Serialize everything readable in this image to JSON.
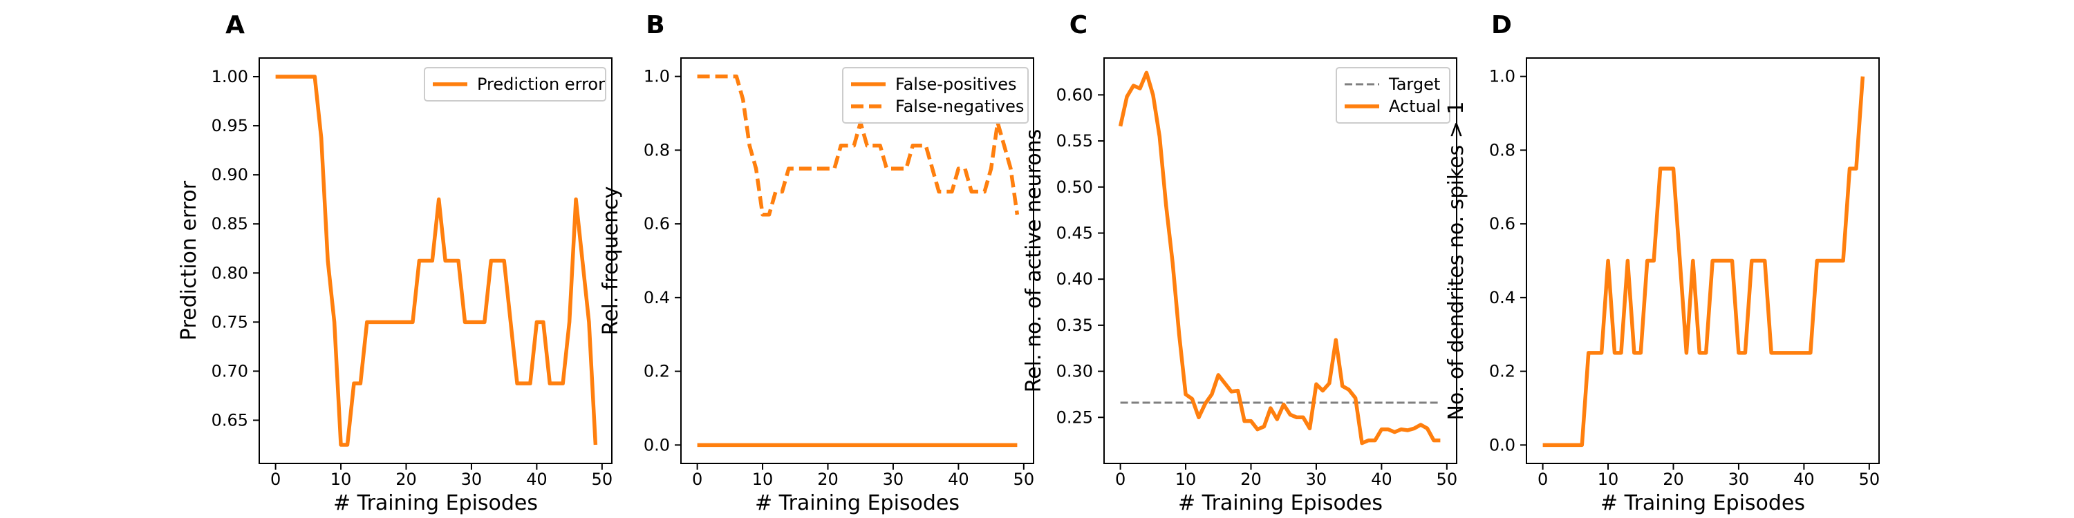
{
  "panels": [
    {
      "letter": "A"
    },
    {
      "letter": "B"
    },
    {
      "letter": "C"
    },
    {
      "letter": "D"
    }
  ],
  "colors": {
    "orange": "#ff7f0e",
    "gray": "#7f7f7f",
    "axis": "#000000"
  },
  "chart_data": [
    {
      "type": "line",
      "title": "",
      "xlabel": "# Training Episodes",
      "ylabel": "Prediction error",
      "xlim": [
        -2.5,
        51.5
      ],
      "ylim": [
        0.606,
        1.019
      ],
      "xticks": [
        0,
        10,
        20,
        30,
        40,
        50
      ],
      "yticks": [
        0.65,
        0.7,
        0.75,
        0.8,
        0.85,
        0.9,
        0.95,
        1.0
      ],
      "ytick_labels": [
        "0.65",
        "0.70",
        "0.75",
        "0.80",
        "0.85",
        "0.90",
        "0.95",
        "1.00"
      ],
      "legend": "top-right",
      "x": [
        0,
        1,
        2,
        3,
        4,
        5,
        6,
        7,
        8,
        9,
        10,
        11,
        12,
        13,
        14,
        15,
        16,
        17,
        18,
        19,
        20,
        21,
        22,
        23,
        24,
        25,
        26,
        27,
        28,
        29,
        30,
        31,
        32,
        33,
        34,
        35,
        36,
        37,
        38,
        39,
        40,
        41,
        42,
        43,
        44,
        45,
        46,
        47,
        48,
        49
      ],
      "series": [
        {
          "name": "Prediction error",
          "color": "#ff7f0e",
          "style": "solid",
          "values": [
            1.0,
            1.0,
            1.0,
            1.0,
            1.0,
            1.0,
            1.0,
            0.9375,
            0.8125,
            0.75,
            0.625,
            0.625,
            0.6875,
            0.6875,
            0.75,
            0.75,
            0.75,
            0.75,
            0.75,
            0.75,
            0.75,
            0.75,
            0.8125,
            0.8125,
            0.8125,
            0.875,
            0.8125,
            0.8125,
            0.8125,
            0.75,
            0.75,
            0.75,
            0.75,
            0.8125,
            0.8125,
            0.8125,
            0.75,
            0.6875,
            0.6875,
            0.6875,
            0.75,
            0.75,
            0.6875,
            0.6875,
            0.6875,
            0.75,
            0.875,
            0.8125,
            0.75,
            0.625
          ]
        }
      ]
    },
    {
      "type": "line",
      "title": "",
      "xlabel": "# Training Episodes",
      "ylabel": "Rel. frequency",
      "xlim": [
        -2.5,
        51.5
      ],
      "ylim": [
        -0.05,
        1.05
      ],
      "xticks": [
        0,
        10,
        20,
        30,
        40,
        50
      ],
      "yticks": [
        0.0,
        0.2,
        0.4,
        0.6,
        0.8,
        1.0
      ],
      "ytick_labels": [
        "0.0",
        "0.2",
        "0.4",
        "0.6",
        "0.8",
        "1.0"
      ],
      "legend": "top-right",
      "x": [
        0,
        1,
        2,
        3,
        4,
        5,
        6,
        7,
        8,
        9,
        10,
        11,
        12,
        13,
        14,
        15,
        16,
        17,
        18,
        19,
        20,
        21,
        22,
        23,
        24,
        25,
        26,
        27,
        28,
        29,
        30,
        31,
        32,
        33,
        34,
        35,
        36,
        37,
        38,
        39,
        40,
        41,
        42,
        43,
        44,
        45,
        46,
        47,
        48,
        49
      ],
      "series": [
        {
          "name": "False-positives",
          "color": "#ff7f0e",
          "style": "solid",
          "values": [
            0,
            0,
            0,
            0,
            0,
            0,
            0,
            0,
            0,
            0,
            0,
            0,
            0,
            0,
            0,
            0,
            0,
            0,
            0,
            0,
            0,
            0,
            0,
            0,
            0,
            0,
            0,
            0,
            0,
            0,
            0,
            0,
            0,
            0,
            0,
            0,
            0,
            0,
            0,
            0,
            0,
            0,
            0,
            0,
            0,
            0,
            0,
            0,
            0,
            0
          ]
        },
        {
          "name": "False-negatives",
          "color": "#ff7f0e",
          "style": "dashed",
          "values": [
            1.0,
            1.0,
            1.0,
            1.0,
            1.0,
            1.0,
            1.0,
            0.9375,
            0.8125,
            0.75,
            0.625,
            0.625,
            0.6875,
            0.6875,
            0.75,
            0.75,
            0.75,
            0.75,
            0.75,
            0.75,
            0.75,
            0.75,
            0.8125,
            0.8125,
            0.8125,
            0.875,
            0.8125,
            0.8125,
            0.8125,
            0.75,
            0.75,
            0.75,
            0.75,
            0.8125,
            0.8125,
            0.8125,
            0.75,
            0.6875,
            0.6875,
            0.6875,
            0.75,
            0.75,
            0.6875,
            0.6875,
            0.6875,
            0.75,
            0.875,
            0.8125,
            0.75,
            0.625
          ]
        }
      ]
    },
    {
      "type": "line",
      "title": "",
      "xlabel": "# Training Episodes",
      "ylabel": "Rel. no. of active neurons",
      "xlim": [
        -2.5,
        51.5
      ],
      "ylim": [
        0.2,
        0.64
      ],
      "xticks": [
        0,
        10,
        20,
        30,
        40,
        50
      ],
      "yticks": [
        0.25,
        0.3,
        0.35,
        0.4,
        0.45,
        0.5,
        0.55,
        0.6
      ],
      "ytick_labels": [
        "0.25",
        "0.30",
        "0.35",
        "0.40",
        "0.45",
        "0.50",
        "0.55",
        "0.60"
      ],
      "legend": "top-right",
      "x": [
        0,
        1,
        2,
        3,
        4,
        5,
        6,
        7,
        8,
        9,
        10,
        11,
        12,
        13,
        14,
        15,
        16,
        17,
        18,
        19,
        20,
        21,
        22,
        23,
        24,
        25,
        26,
        27,
        28,
        29,
        30,
        31,
        32,
        33,
        34,
        35,
        36,
        37,
        38,
        39,
        40,
        41,
        42,
        43,
        44,
        45,
        46,
        47,
        48,
        49
      ],
      "series": [
        {
          "name": "Target",
          "color": "#7f7f7f",
          "style": "dashed",
          "values": [
            0.266,
            0.266,
            0.266,
            0.266,
            0.266,
            0.266,
            0.266,
            0.266,
            0.266,
            0.266,
            0.266,
            0.266,
            0.266,
            0.266,
            0.266,
            0.266,
            0.266,
            0.266,
            0.266,
            0.266,
            0.266,
            0.266,
            0.266,
            0.266,
            0.266,
            0.266,
            0.266,
            0.266,
            0.266,
            0.266,
            0.266,
            0.266,
            0.266,
            0.266,
            0.266,
            0.266,
            0.266,
            0.266,
            0.266,
            0.266,
            0.266,
            0.266,
            0.266,
            0.266,
            0.266,
            0.266,
            0.266,
            0.266,
            0.266,
            0.266
          ]
        },
        {
          "name": "Actual",
          "color": "#ff7f0e",
          "style": "solid",
          "values": [
            0.566,
            0.598,
            0.61,
            0.607,
            0.624,
            0.6,
            0.555,
            0.48,
            0.418,
            0.34,
            0.275,
            0.27,
            0.25,
            0.265,
            0.275,
            0.296,
            0.287,
            0.278,
            0.279,
            0.246,
            0.246,
            0.237,
            0.24,
            0.26,
            0.248,
            0.264,
            0.253,
            0.25,
            0.25,
            0.238,
            0.286,
            0.279,
            0.287,
            0.334,
            0.284,
            0.28,
            0.271,
            0.222,
            0.225,
            0.225,
            0.237,
            0.237,
            0.234,
            0.237,
            0.236,
            0.238,
            0.242,
            0.238,
            0.225,
            0.225
          ]
        }
      ]
    },
    {
      "type": "line",
      "title": "",
      "xlabel": "# Training Episodes",
      "ylabel": "No. of dendrites no. spikes > 1",
      "xlim": [
        -2.5,
        51.5
      ],
      "ylim": [
        -0.05,
        1.05
      ],
      "xticks": [
        0,
        10,
        20,
        30,
        40,
        50
      ],
      "yticks": [
        0.0,
        0.2,
        0.4,
        0.6,
        0.8,
        1.0
      ],
      "ytick_labels": [
        "0.0",
        "0.2",
        "0.4",
        "0.6",
        "0.8",
        "1.0"
      ],
      "legend": "none",
      "x": [
        0,
        1,
        2,
        3,
        4,
        5,
        6,
        7,
        8,
        9,
        10,
        11,
        12,
        13,
        14,
        15,
        16,
        17,
        18,
        19,
        20,
        21,
        22,
        23,
        24,
        25,
        26,
        27,
        28,
        29,
        30,
        31,
        32,
        33,
        34,
        35,
        36,
        37,
        38,
        39,
        40,
        41,
        42,
        43,
        44,
        45,
        46,
        47,
        48,
        49
      ],
      "series": [
        {
          "name": "",
          "color": "#ff7f0e",
          "style": "solid",
          "values": [
            0,
            0,
            0,
            0,
            0,
            0,
            0,
            0.25,
            0.25,
            0.25,
            0.5,
            0.25,
            0.25,
            0.5,
            0.25,
            0.25,
            0.5,
            0.5,
            0.75,
            0.75,
            0.75,
            0.5,
            0.25,
            0.5,
            0.25,
            0.25,
            0.5,
            0.5,
            0.5,
            0.5,
            0.25,
            0.25,
            0.5,
            0.5,
            0.5,
            0.25,
            0.25,
            0.25,
            0.25,
            0.25,
            0.25,
            0.25,
            0.5,
            0.5,
            0.5,
            0.5,
            0.5,
            0.75,
            0.75,
            1.0
          ]
        }
      ]
    }
  ]
}
